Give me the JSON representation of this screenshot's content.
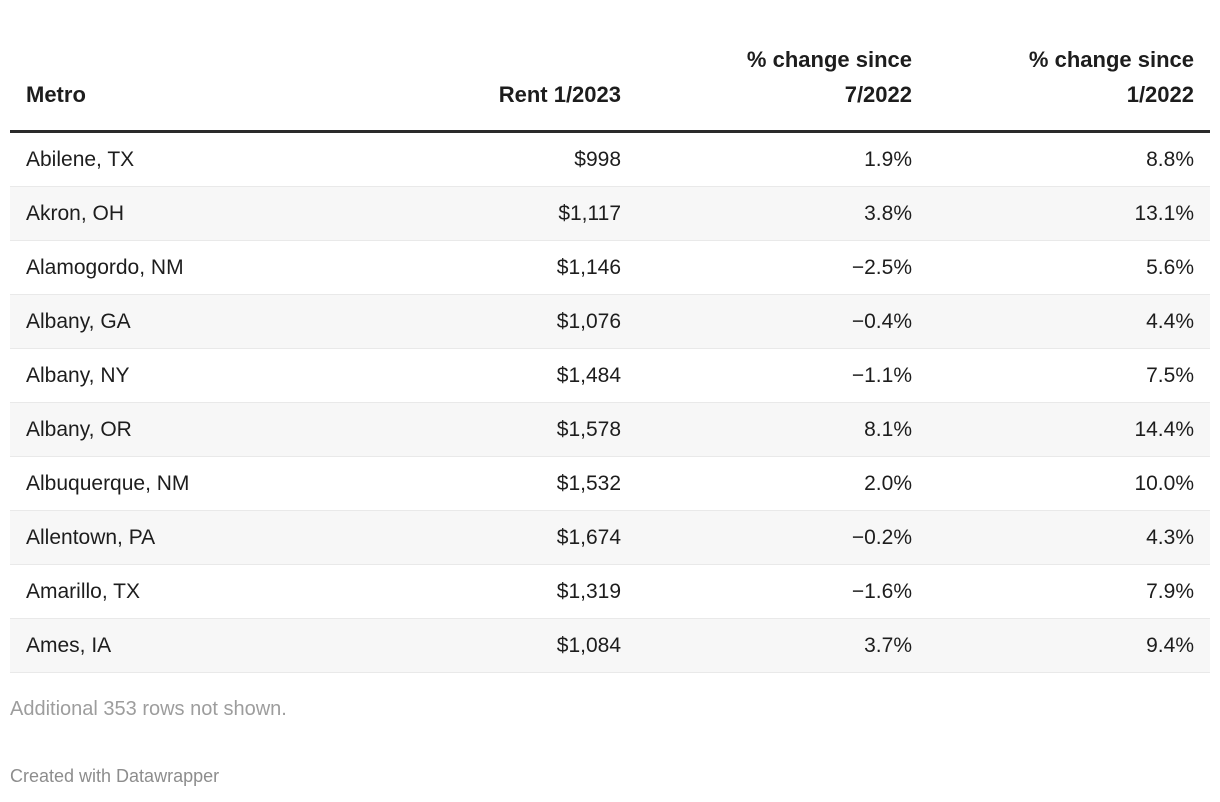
{
  "chart_data": {
    "type": "table",
    "columns": [
      "Metro",
      "Rent 1/2023",
      "% change since 7/2022",
      "% change since 1/2022"
    ],
    "rows": [
      [
        "Abilene, TX",
        "$998",
        "1.9%",
        "8.8%"
      ],
      [
        "Akron, OH",
        "$1,117",
        "3.8%",
        "13.1%"
      ],
      [
        "Alamogordo, NM",
        "$1,146",
        "−2.5%",
        "5.6%"
      ],
      [
        "Albany, GA",
        "$1,076",
        "−0.4%",
        "4.4%"
      ],
      [
        "Albany, NY",
        "$1,484",
        "−1.1%",
        "7.5%"
      ],
      [
        "Albany, OR",
        "$1,578",
        "8.1%",
        "14.4%"
      ],
      [
        "Albuquerque, NM",
        "$1,532",
        "2.0%",
        "10.0%"
      ],
      [
        "Allentown, PA",
        "$1,674",
        "−0.2%",
        "4.3%"
      ],
      [
        "Amarillo, TX",
        "$1,319",
        "−1.6%",
        "7.9%"
      ],
      [
        "Ames, IA",
        "$1,084",
        "3.7%",
        "9.4%"
      ]
    ]
  },
  "header_display": {
    "change_7_2022": {
      "line1": "% change since",
      "line2": "7/2022"
    },
    "change_1_2022": {
      "line1": "% change since",
      "line2": "1/2022"
    }
  },
  "footer": {
    "note": "Additional 353 rows not shown.",
    "attribution": "Created with Datawrapper"
  },
  "colors": {
    "text": "#1d1d1d",
    "stripe": "#f7f7f7",
    "row_border": "#e9e9e9",
    "header_rule": "#2a2a2a",
    "note_text": "#9d9d9d",
    "attribution_text": "#8d8d8d"
  }
}
